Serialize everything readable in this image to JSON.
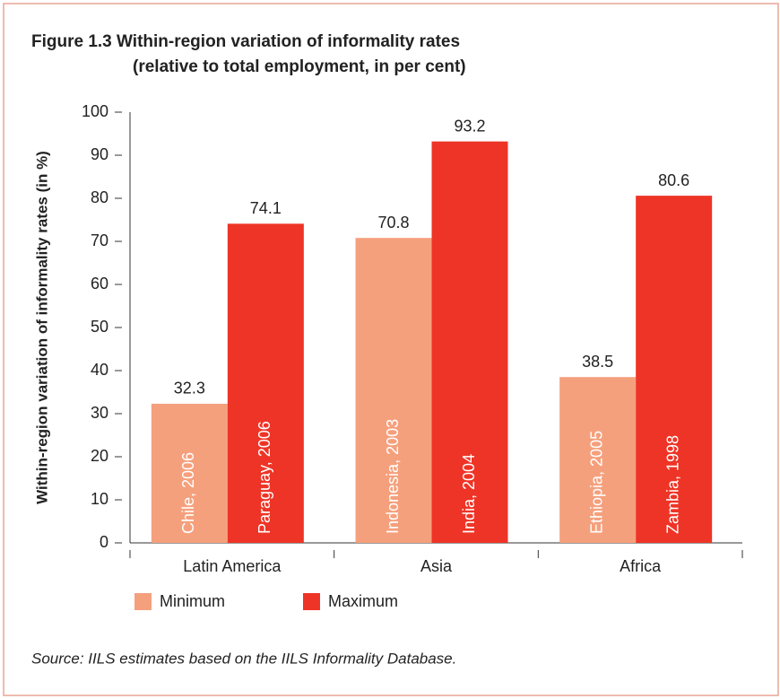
{
  "chart_data": {
    "type": "bar",
    "title": "Figure 1.3 Within-region variation of informality rates",
    "subtitle": "(relative to total employment, in per cent)",
    "y_label": "Within-region variation of informality rates (in %)",
    "categories": [
      "Latin America",
      "Asia",
      "Africa"
    ],
    "series": [
      {
        "name": "Minimum",
        "color": "#f5a07d",
        "values": [
          32.3,
          70.8,
          38.5
        ],
        "bar_labels": [
          "Chile, 2006",
          "Indonesia, 2003",
          "Ethiopia, 2005"
        ]
      },
      {
        "name": "Maximum",
        "color": "#ee3426",
        "values": [
          74.1,
          93.2,
          80.6
        ],
        "bar_labels": [
          "Paraguay, 2006",
          "India, 2004",
          "Zambia, 1998"
        ]
      }
    ],
    "ylim": [
      0,
      100
    ],
    "yticks": [
      0,
      10,
      20,
      30,
      40,
      50,
      60,
      70,
      80,
      90,
      100
    ],
    "source": "Source: IILS estimates based on the IILS Informality Database."
  }
}
